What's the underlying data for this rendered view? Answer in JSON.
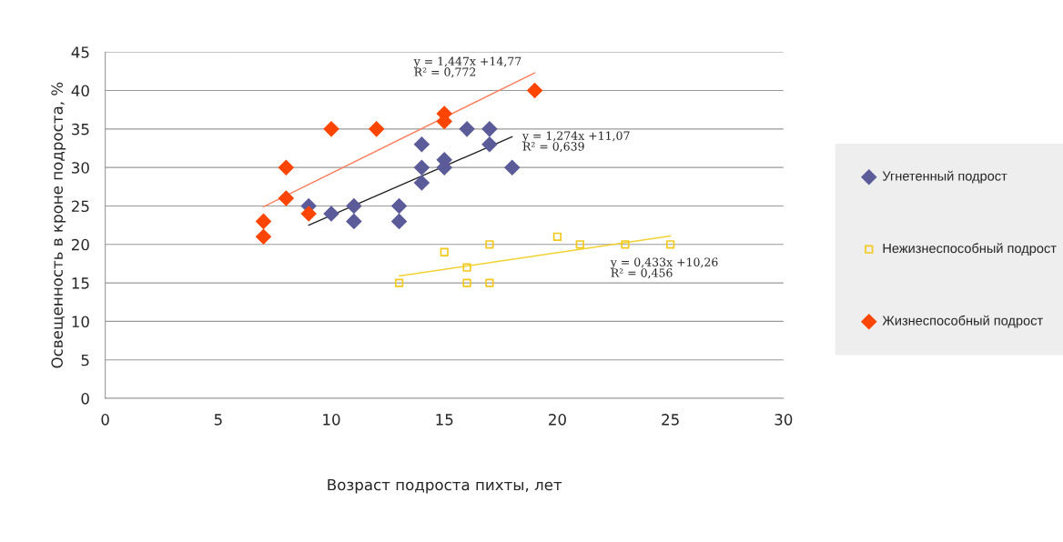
{
  "chart_data": {
    "type": "scatter",
    "xlabel": "Возраст подроста пихты, лет",
    "ylabel": "Освещенность в кроне подроста, %",
    "xlim": [
      0,
      30
    ],
    "xticks": [
      0,
      5,
      10,
      15,
      20,
      25,
      30
    ],
    "ylim": [
      0,
      45
    ],
    "yticks": [
      0,
      5,
      10,
      15,
      20,
      25,
      30,
      35,
      40,
      45
    ],
    "grid": "y",
    "legend": "right",
    "series": [
      {
        "name": "Угнетенный подрост",
        "color": "#5b5b9a",
        "marker": "diamond",
        "x": [
          9,
          10,
          11,
          11,
          13,
          13,
          14,
          14,
          14,
          15,
          15,
          16,
          17,
          17,
          18
        ],
        "values": [
          25,
          24,
          25,
          23,
          25,
          23,
          33,
          30,
          28,
          31,
          30,
          35,
          35,
          33,
          30
        ]
      },
      {
        "name": "Нежизнеспособный подрост",
        "color": "#f2c81a",
        "marker": "square",
        "x": [
          13,
          15,
          16,
          16,
          17,
          17,
          20,
          21,
          23,
          25
        ],
        "values": [
          15,
          19,
          17,
          15,
          20,
          15,
          21,
          20,
          20,
          20
        ]
      },
      {
        "name": "Жизнеспособный подрост",
        "color": "#ff4500",
        "marker": "diamond",
        "x": [
          7,
          7,
          8,
          8,
          9,
          10,
          12,
          15,
          15,
          19
        ],
        "values": [
          23,
          21,
          30,
          26,
          24,
          35,
          35,
          37,
          36,
          40
        ]
      },
      {
        "type": "line",
        "color": "#ff7f5f",
        "x": [
          7,
          19
        ],
        "values": [
          24.9,
          42.3
        ]
      },
      {
        "type": "line",
        "color": "#222222",
        "x": [
          9,
          18
        ],
        "values": [
          22.5,
          34.0
        ]
      },
      {
        "type": "line",
        "color": "#f2d230",
        "x": [
          13,
          25
        ],
        "values": [
          15.9,
          21.1
        ]
      }
    ],
    "annotations": [
      "y = 1,447x +14,77\nR² = 0,772",
      "y = 1,274x +11,07\nR² = 0,639",
      "y = 0,433x +10,26\nR² = 0,456"
    ]
  }
}
